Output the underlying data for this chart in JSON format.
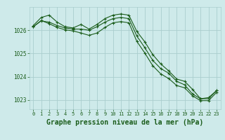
{
  "title": "Graphe pression niveau de la mer (hPa)",
  "bg_color": "#ceeaea",
  "grid_color": "#aacece",
  "line_color": "#1a5c1a",
  "xlim": [
    -0.5,
    23.5
  ],
  "ylim": [
    1022.6,
    1027.0
  ],
  "yticks": [
    1023,
    1024,
    1025,
    1026
  ],
  "xticks": [
    0,
    1,
    2,
    3,
    4,
    5,
    6,
    7,
    8,
    9,
    10,
    11,
    12,
    13,
    14,
    15,
    16,
    17,
    18,
    19,
    20,
    21,
    22,
    23
  ],
  "series": [
    {
      "x": [
        0,
        1,
        2,
        3,
        4,
        5,
        6,
        7,
        8,
        9,
        10,
        11,
        12,
        13,
        14,
        15,
        16,
        17,
        18,
        19,
        20,
        21,
        22,
        23
      ],
      "y": [
        1026.2,
        1026.55,
        1026.65,
        1026.35,
        1026.15,
        1026.1,
        1026.25,
        1026.05,
        1026.25,
        1026.5,
        1026.65,
        1026.7,
        1026.65,
        1025.95,
        1025.5,
        1024.95,
        1024.55,
        1024.25,
        1023.9,
        1023.8,
        1023.45,
        1023.05,
        1023.05,
        1023.4
      ]
    },
    {
      "x": [
        0,
        1,
        2,
        3,
        4,
        5,
        6,
        7,
        8,
        9,
        10,
        11,
        12,
        13,
        14,
        15,
        16,
        17,
        18,
        19,
        20,
        21,
        22,
        23
      ],
      "y": [
        1026.15,
        1026.4,
        1026.35,
        1026.2,
        1026.1,
        1026.05,
        1026.05,
        1026.0,
        1026.15,
        1026.35,
        1026.5,
        1026.55,
        1026.5,
        1025.75,
        1025.25,
        1024.7,
        1024.35,
        1024.15,
        1023.8,
        1023.65,
        1023.25,
        1023.05,
        1023.1,
        1023.4
      ]
    },
    {
      "x": [
        0,
        1,
        2,
        3,
        4,
        5,
        6,
        7,
        8,
        9,
        10,
        11,
        12,
        13,
        14,
        15,
        16,
        17,
        18,
        19,
        20,
        21,
        22,
        23
      ],
      "y": [
        1026.15,
        1026.42,
        1026.28,
        1026.12,
        1026.02,
        1025.97,
        1025.88,
        1025.78,
        1025.88,
        1026.12,
        1026.32,
        1026.37,
        1026.32,
        1025.52,
        1025.02,
        1024.47,
        1024.12,
        1023.92,
        1023.62,
        1023.52,
        1023.17,
        1022.97,
        1022.97,
        1023.32
      ]
    }
  ],
  "marker": "+",
  "marker_size": 3.5,
  "linewidth": 0.8,
  "title_fontsize": 7,
  "tick_fontsize": 5,
  "title_color": "#1a5c1a",
  "tick_color": "#1a5c1a"
}
